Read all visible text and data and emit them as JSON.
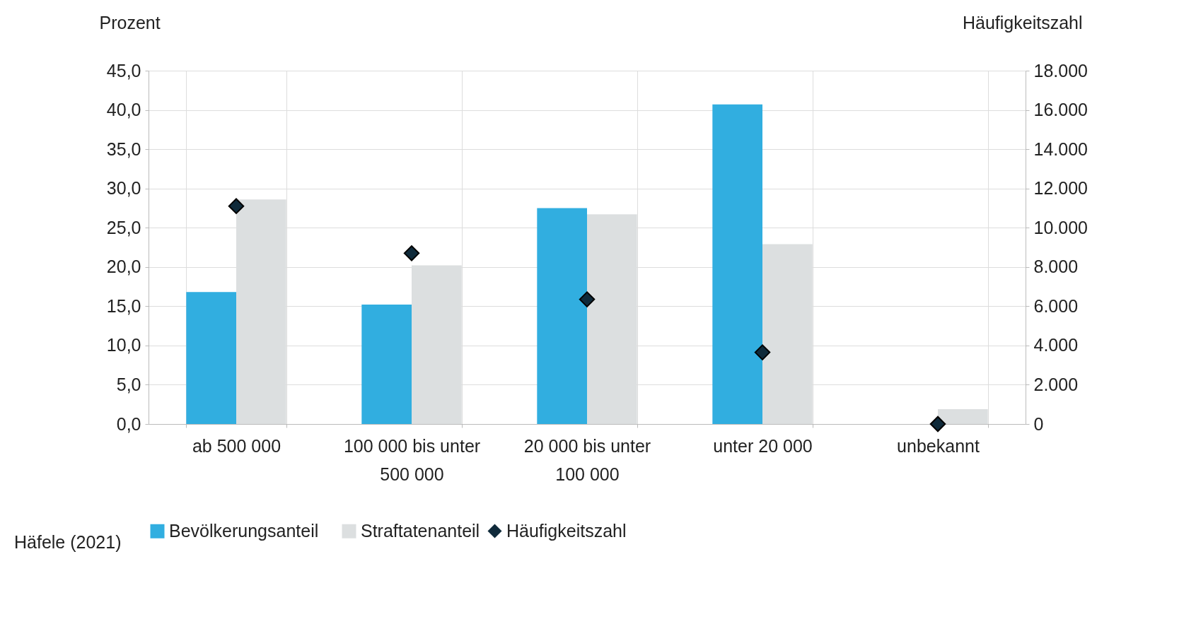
{
  "chart_data": {
    "type": "bar",
    "ylabel": "Prozent",
    "y2label": "Häufigkeitszahl",
    "categories": [
      "ab 500 000",
      "100 000 bis unter 500 000",
      "20 000 bis unter 100 000",
      "unter 20 000",
      "unbekannt"
    ],
    "series": [
      {
        "name": "Bevölkerungsanteil",
        "color": "#31aee0",
        "values": [
          16.8,
          15.2,
          27.5,
          40.7,
          null
        ]
      },
      {
        "name": "Straftatenanteil",
        "color": "#dcdfe0",
        "values": [
          28.6,
          20.2,
          26.7,
          22.9,
          1.9
        ]
      },
      {
        "name": "Häufigkeitszahl",
        "type": "scatter",
        "axis": "y2",
        "marker": "diamond",
        "color": "#0f2a3a",
        "values": [
          11100,
          8700,
          6350,
          3650,
          0
        ]
      }
    ],
    "ylim": [
      0,
      45
    ],
    "yticks": [
      {
        "value": 0,
        "label": "0,0"
      },
      {
        "value": 5,
        "label": "5,0"
      },
      {
        "value": 10,
        "label": "10,0"
      },
      {
        "value": 15,
        "label": "15,0"
      },
      {
        "value": 20,
        "label": "20,0"
      },
      {
        "value": 25,
        "label": "25,0"
      },
      {
        "value": 30,
        "label": "30,0"
      },
      {
        "value": 35,
        "label": "35,0"
      },
      {
        "value": 40,
        "label": "40,0"
      },
      {
        "value": 45,
        "label": "45,0"
      }
    ],
    "y2lim": [
      0,
      18000
    ],
    "y2ticks": [
      0,
      {
        "value": 2000,
        "label": "2.000"
      },
      {
        "value": 4000,
        "label": "4.000"
      },
      {
        "value": 6000,
        "label": "6.000"
      },
      {
        "value": 8000,
        "label": "8.000"
      },
      {
        "value": 10000,
        "label": "10.000"
      },
      {
        "value": 12000,
        "label": "12.000"
      },
      {
        "value": 14000,
        "label": "14.000"
      },
      {
        "value": 16000,
        "label": "16.000"
      },
      {
        "value": 18000,
        "label": "18.000"
      }
    ],
    "grid": true,
    "legend": "bottom",
    "annotations": [
      "Häfele (2021)"
    ]
  }
}
